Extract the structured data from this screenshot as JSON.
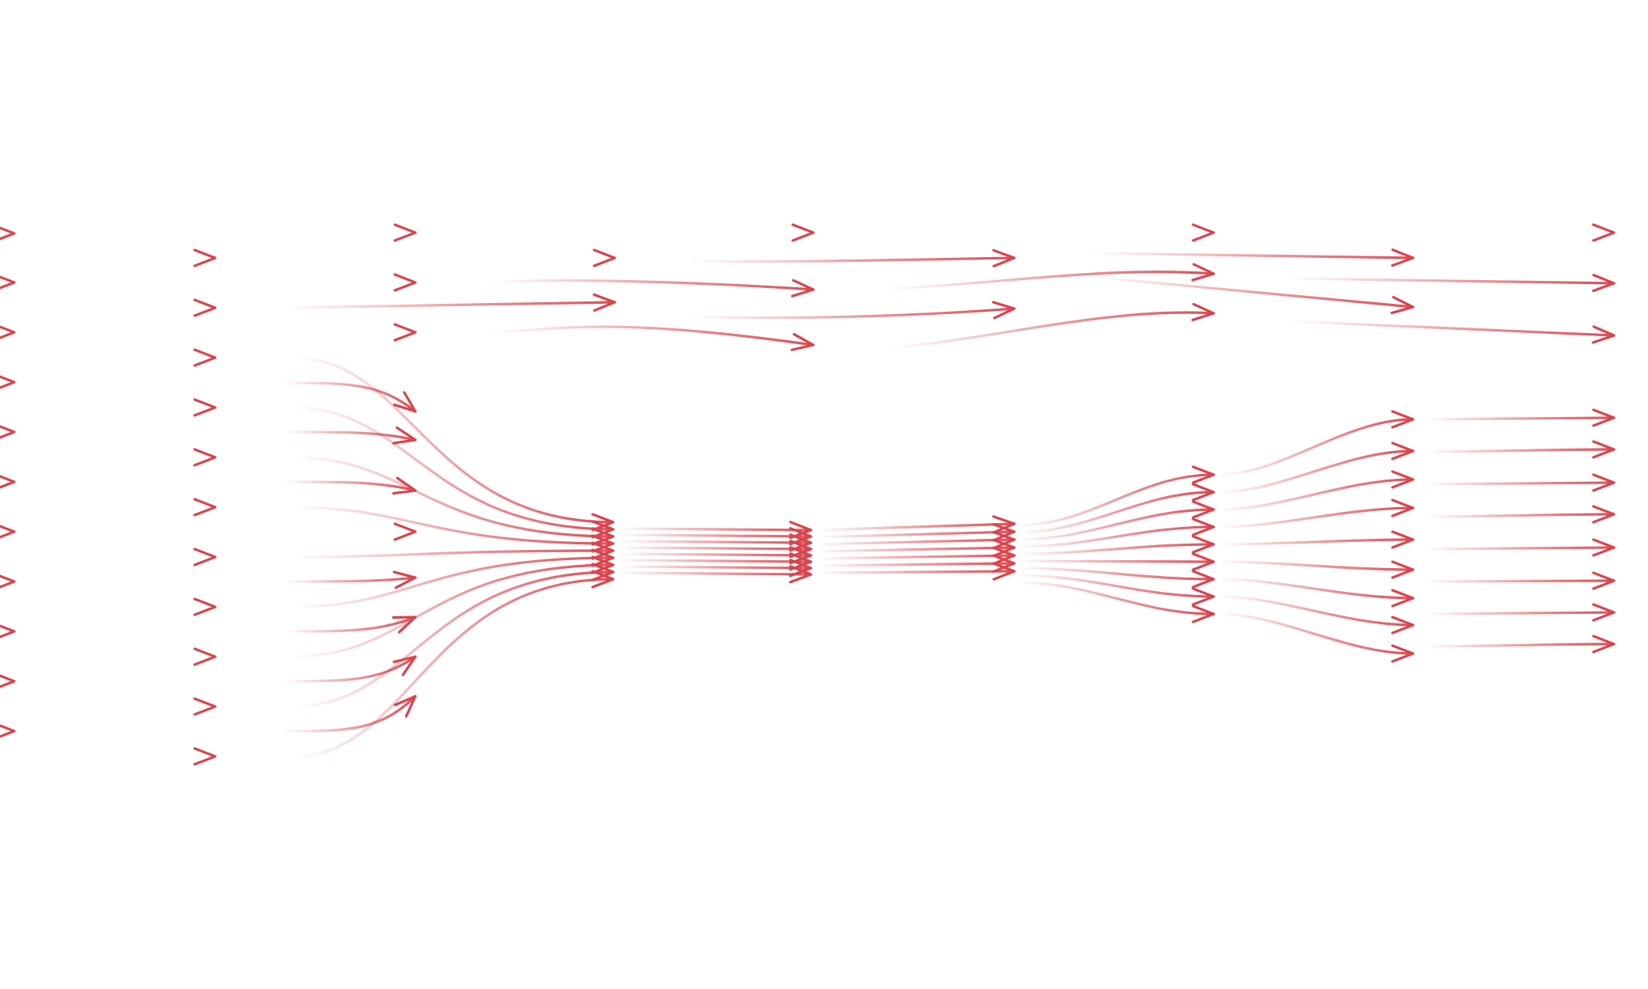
{
  "diagram": {
    "type": "flow-streamlines",
    "caption": "",
    "stroke_color": "#d9444e",
    "fade_color": "#ffffff",
    "background": "#ffffff",
    "segments_per_streamline": 4,
    "streamline_count": 50,
    "notes": ""
  }
}
